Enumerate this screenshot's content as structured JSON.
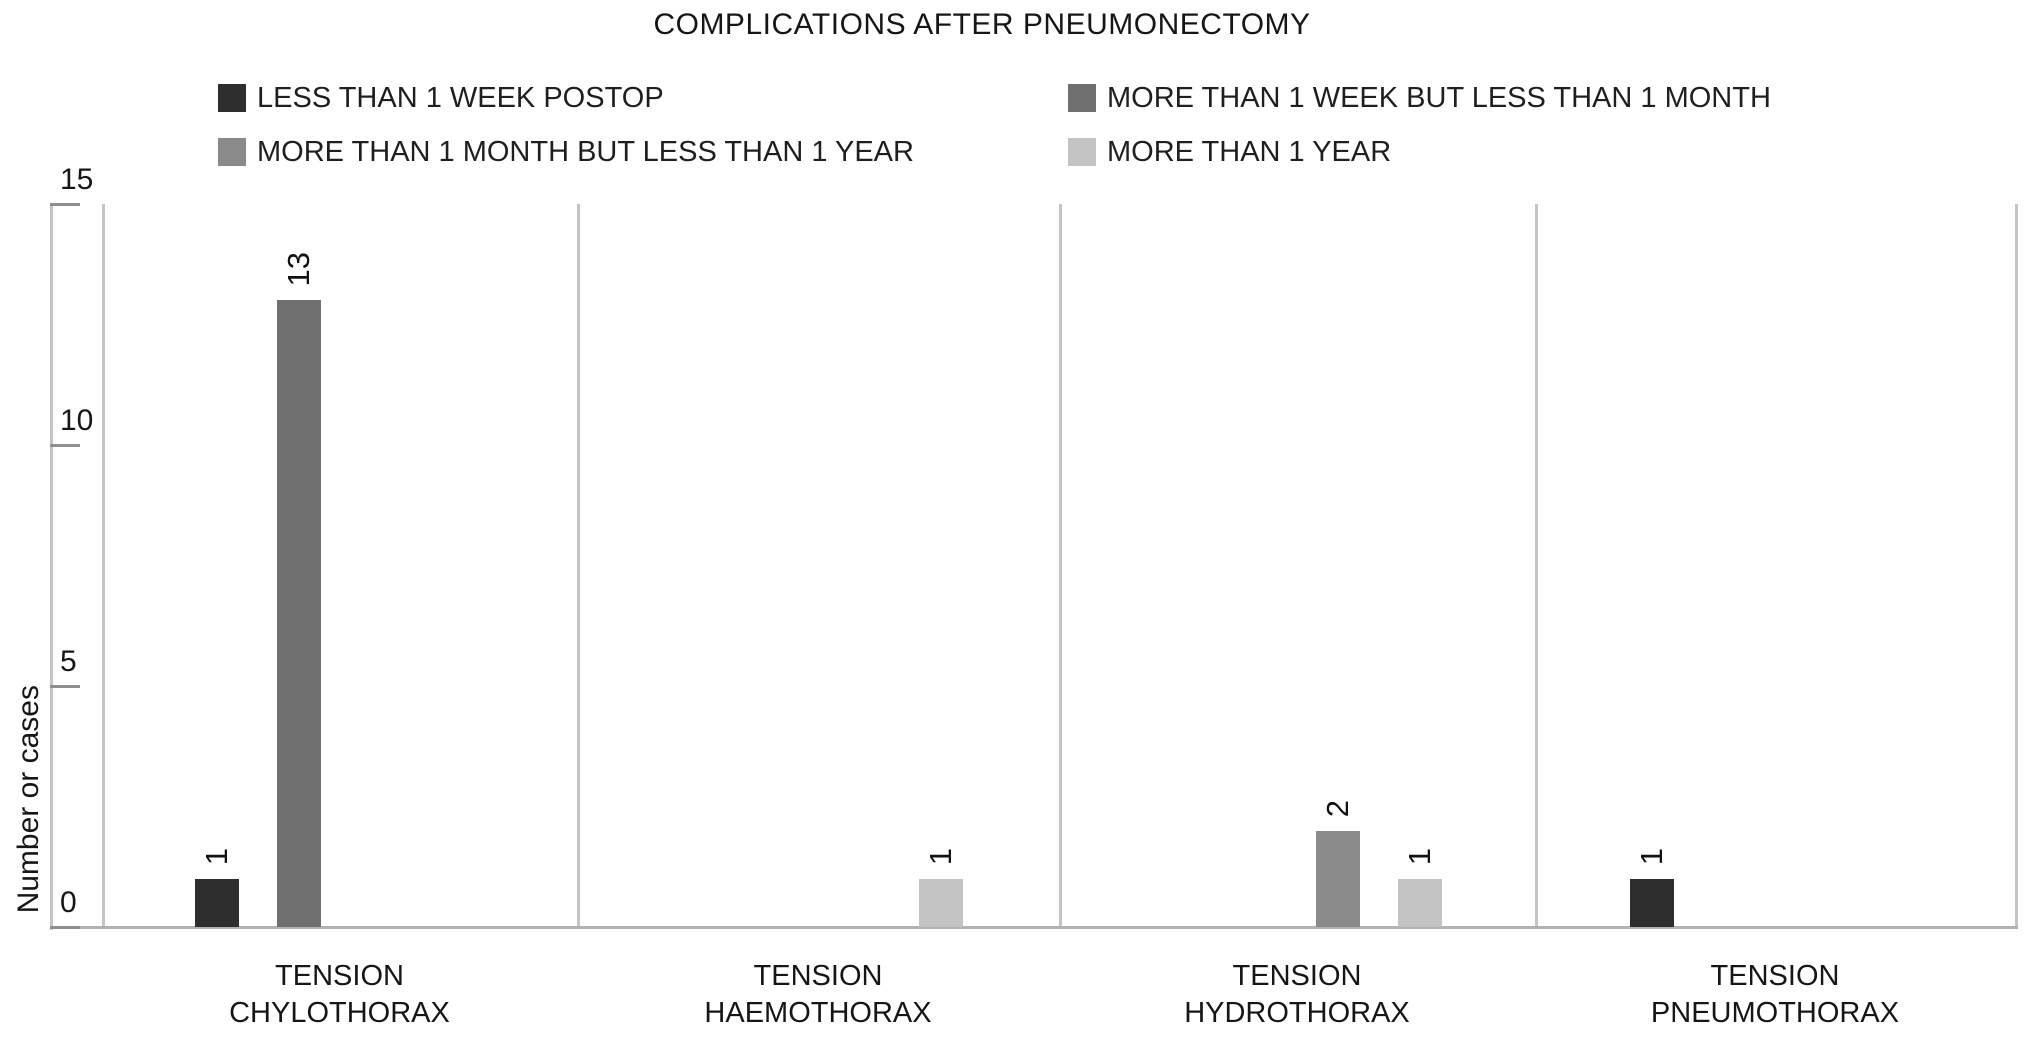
{
  "title": "COMPLICATIONS AFTER PNEUMONECTOMY",
  "chart_data": {
    "type": "bar",
    "title": "COMPLICATIONS AFTER PNEUMONECTOMY",
    "xlabel": "",
    "ylabel": "Number or cases",
    "ylim": [
      0,
      15
    ],
    "yticks": [
      0,
      5,
      10,
      15
    ],
    "grid": false,
    "legend_position": "top",
    "panel_dividers": true,
    "bar_value_labels": "rotated-90",
    "categories": [
      "TENSION\nCHYLOTHORAX",
      "TENSION\nHAEMOTHORAX",
      "TENSION\nHYDROTHORAX",
      "TENSION\nPNEUMOTHORAX"
    ],
    "series": [
      {
        "name": "LESS THAN 1 WEEK POSTOP",
        "color": "#2e2e2e",
        "values": [
          1,
          0,
          0,
          1
        ]
      },
      {
        "name": "MORE THAN 1 WEEK BUT LESS THAN 1 MONTH",
        "color": "#6f6f6f",
        "values": [
          13,
          0,
          0,
          0
        ]
      },
      {
        "name": "MORE THAN 1 MONTH BUT LESS THAN 1 YEAR",
        "color": "#8a8a8a",
        "values": [
          0,
          0,
          2,
          0
        ]
      },
      {
        "name": "MORE THAN 1 YEAR",
        "color": "#c3c3c3",
        "values": [
          0,
          1,
          1,
          0
        ]
      }
    ]
  },
  "frame_colors": {
    "panel_line": "#c4c4c4",
    "baseline": "#b2b2b2",
    "tick": "#8f8f8f"
  }
}
